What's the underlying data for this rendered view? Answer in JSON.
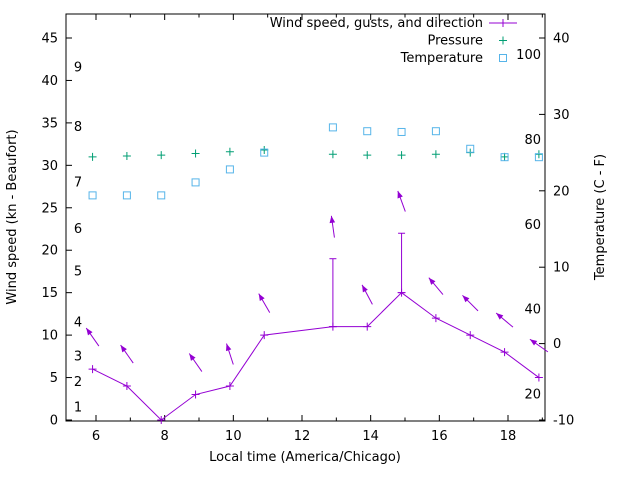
{
  "window": {
    "background": "#ffffff"
  },
  "colors": {
    "wind": "#9400d3",
    "pressure": "#009e73",
    "temperature": "#56b4e9",
    "axis": "#000000"
  },
  "chart_data": {
    "type": "line",
    "title": "",
    "xlabel": "Local time (America/Chicago)",
    "grid": false,
    "legend_position": "top-right-inside",
    "x_major_ticks": [
      6,
      8,
      10,
      12,
      14,
      16,
      18
    ],
    "x_minor_ticks": [
      7,
      9,
      11,
      13,
      15,
      17,
      19
    ],
    "xlim": [
      5.13,
      19.08
    ],
    "left_axis": {
      "title": "Wind speed (kn - Beaufort)",
      "ticks": [
        0,
        5,
        10,
        15,
        20,
        25,
        30,
        35,
        40,
        45
      ],
      "range": [
        0,
        47.8
      ]
    },
    "right_axis": {
      "title": "Temperature (C - F)",
      "ticks": [
        -10,
        0,
        10,
        20,
        30,
        40
      ],
      "range": [
        -10,
        43.1
      ]
    },
    "beaufort_scale_labels": [
      {
        "text": "1",
        "kn": 1.5
      },
      {
        "text": "2",
        "kn": 4.5
      },
      {
        "text": "3",
        "kn": 7.5
      },
      {
        "text": "4",
        "kn": 11.5
      },
      {
        "text": "5",
        "kn": 17.5
      },
      {
        "text": "6",
        "kn": 22.5
      },
      {
        "text": "7",
        "kn": 28
      },
      {
        "text": "8",
        "kn": 34.5
      },
      {
        "text": "9",
        "kn": 41.5
      }
    ],
    "fahrenheit_scale_labels": [
      {
        "text": "20",
        "f": 20
      },
      {
        "text": "40",
        "f": 40
      },
      {
        "text": "60",
        "f": 60
      },
      {
        "text": "80",
        "f": 80
      },
      {
        "text": "100",
        "f": 100
      }
    ],
    "series": [
      {
        "name": "Wind speed, gusts, and direction",
        "axis": "left",
        "color_key": "wind",
        "style": "line-plus-gusts-arrows",
        "points": [
          {
            "h": 5.9,
            "wind": 6,
            "gust": null,
            "dir": -35
          },
          {
            "h": 6.9,
            "wind": 4,
            "gust": null,
            "dir": -35
          },
          {
            "h": 7.9,
            "wind": 0,
            "gust": null,
            "dir": null
          },
          {
            "h": 8.9,
            "wind": 3,
            "gust": null,
            "dir": -35
          },
          {
            "h": 9.9,
            "wind": 4,
            "gust": null,
            "dir": -18
          },
          {
            "h": 10.9,
            "wind": 10,
            "gust": null,
            "dir": -30
          },
          {
            "h": 12.9,
            "wind": 11,
            "gust": 19,
            "dir": -8
          },
          {
            "h": 13.9,
            "wind": 11,
            "gust": null,
            "dir": -28
          },
          {
            "h": 14.9,
            "wind": 15,
            "gust": 22,
            "dir": -20
          },
          {
            "h": 15.9,
            "wind": 12,
            "gust": null,
            "dir": -40
          },
          {
            "h": 16.9,
            "wind": 10,
            "gust": null,
            "dir": -45
          },
          {
            "h": 17.9,
            "wind": 8,
            "gust": null,
            "dir": -50
          },
          {
            "h": 18.9,
            "wind": 5,
            "gust": null,
            "dir": -55
          }
        ]
      },
      {
        "name": "Pressure",
        "axis": "left",
        "color_key": "pressure",
        "style": "points-plus",
        "points": [
          {
            "h": 5.9,
            "v": 31.0
          },
          {
            "h": 6.9,
            "v": 31.1
          },
          {
            "h": 7.9,
            "v": 31.2
          },
          {
            "h": 8.9,
            "v": 31.4
          },
          {
            "h": 9.9,
            "v": 31.6
          },
          {
            "h": 10.9,
            "v": 31.8
          },
          {
            "h": 12.9,
            "v": 31.3
          },
          {
            "h": 13.9,
            "v": 31.2
          },
          {
            "h": 14.9,
            "v": 31.2
          },
          {
            "h": 15.9,
            "v": 31.3
          },
          {
            "h": 16.9,
            "v": 31.5
          },
          {
            "h": 17.9,
            "v": 31.0
          },
          {
            "h": 18.9,
            "v": 31.3
          }
        ]
      },
      {
        "name": "Temperature",
        "axis": "right",
        "color_key": "temperature",
        "style": "points-square-open",
        "points": [
          {
            "h": 5.9,
            "c": 19.4
          },
          {
            "h": 6.9,
            "c": 19.4
          },
          {
            "h": 7.9,
            "c": 19.4
          },
          {
            "h": 8.9,
            "c": 21.1
          },
          {
            "h": 9.9,
            "c": 22.8
          },
          {
            "h": 10.9,
            "c": 25.0
          },
          {
            "h": 12.9,
            "c": 28.3
          },
          {
            "h": 13.9,
            "c": 27.8
          },
          {
            "h": 14.9,
            "c": 27.7
          },
          {
            "h": 15.9,
            "c": 27.8
          },
          {
            "h": 16.9,
            "c": 25.5
          },
          {
            "h": 17.9,
            "c": 24.4
          },
          {
            "h": 18.9,
            "c": 24.4
          }
        ]
      }
    ]
  }
}
